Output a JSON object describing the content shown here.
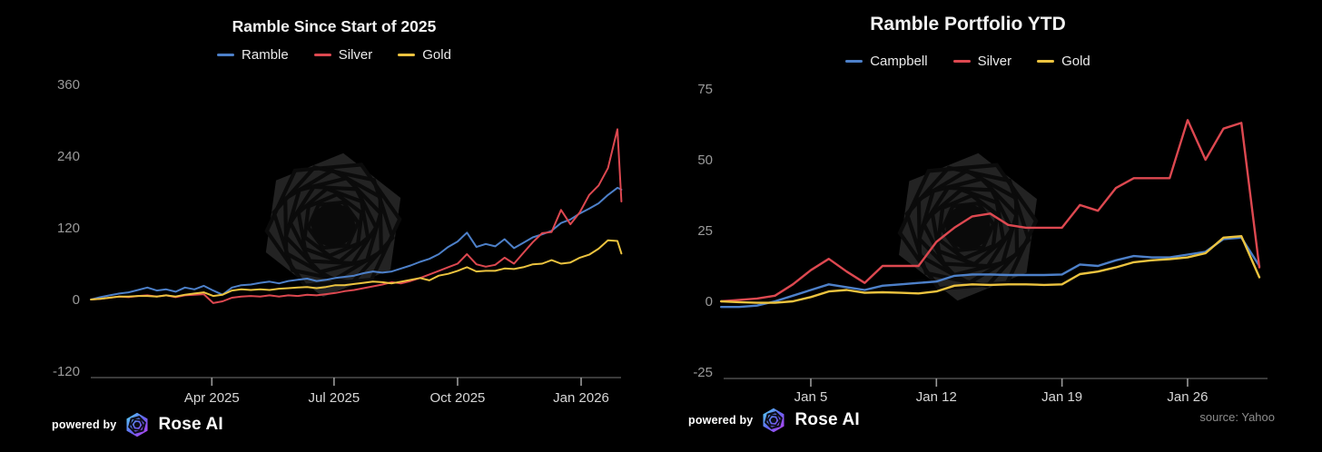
{
  "page": {
    "background": "#000000"
  },
  "branding": {
    "powered_by": "powered by",
    "brand": "Rose AI",
    "source": "source: Yahoo",
    "logo_gradient": [
      "#55dcf5",
      "#6366f1",
      "#c13ef0"
    ]
  },
  "colors": {
    "blue": "#4d80c9",
    "red": "#dd4850",
    "gold": "#ecc33f",
    "axis_line": "#5c5c5c",
    "tick_mark": "#9a9a9a",
    "y_label": "#9a9a9a",
    "x_label": "#d6d6d6",
    "watermark": "#232323"
  },
  "charts": [
    {
      "title": "Ramble Since Start of 2025",
      "chart_data": {
        "type": "line",
        "title": "Ramble Since Start of 2025",
        "xlabel": "",
        "ylabel": "",
        "legend_position": "top",
        "grid": false,
        "y_ticks": [
          360,
          240,
          120,
          0,
          -120
        ],
        "ylim": [
          -130,
          375
        ],
        "x_unit": "days since 2025-01-01",
        "x_tick_days": [
          90,
          181,
          273,
          365
        ],
        "x_tick_labels": [
          "Apr 2025",
          "Jul 2025",
          "Oct 2025",
          "Jan 2026"
        ],
        "x_days": [
          0,
          7,
          14,
          21,
          28,
          35,
          42,
          49,
          56,
          63,
          70,
          77,
          84,
          91,
          98,
          105,
          112,
          119,
          126,
          133,
          140,
          147,
          154,
          161,
          168,
          175,
          182,
          189,
          196,
          203,
          210,
          217,
          224,
          231,
          238,
          245,
          252,
          259,
          266,
          273,
          280,
          287,
          294,
          301,
          308,
          315,
          322,
          329,
          336,
          343,
          350,
          357,
          364,
          371,
          378,
          385,
          392,
          395
        ],
        "series": [
          {
            "name": "Ramble",
            "color": "#4d80c9",
            "values": [
              0,
              4,
              7,
              10,
              12,
              16,
              20,
              15,
              17,
              13,
              20,
              17,
              23,
              15,
              8,
              20,
              24,
              25,
              28,
              30,
              27,
              31,
              33,
              35,
              31,
              33,
              36,
              38,
              40,
              44,
              47,
              45,
              47,
              52,
              57,
              63,
              68,
              76,
              88,
              97,
              112,
              88,
              93,
              89,
              101,
              86,
              95,
              104,
              109,
              115,
              128,
              134,
              144,
              152,
              161,
              175,
              187,
              184
            ]
          },
          {
            "name": "Silver",
            "color": "#dd4850",
            "values": [
              0,
              1,
              3,
              5,
              4,
              6,
              7,
              5,
              7,
              4,
              7,
              8,
              9,
              -6,
              -3,
              3,
              5,
              6,
              5,
              7,
              5,
              7,
              6,
              8,
              7,
              9,
              11,
              14,
              16,
              19,
              22,
              25,
              29,
              27,
              31,
              36,
              42,
              48,
              54,
              60,
              76,
              59,
              55,
              58,
              70,
              60,
              78,
              96,
              111,
              113,
              150,
              126,
              146,
              175,
              191,
              220,
              285,
              164
            ]
          },
          {
            "name": "Gold",
            "color": "#ecc33f",
            "values": [
              0,
              1,
              3,
              5,
              5,
              6,
              6,
              5,
              7,
              5,
              8,
              10,
              12,
              6,
              8,
              15,
              17,
              16,
              17,
              16,
              18,
              19,
              20,
              21,
              19,
              21,
              24,
              24,
              26,
              28,
              30,
              29,
              27,
              30,
              33,
              36,
              32,
              40,
              43,
              48,
              54,
              47,
              48,
              48,
              52,
              51,
              54,
              59,
              60,
              66,
              60,
              62,
              70,
              75,
              85,
              99,
              98,
              77
            ]
          }
        ]
      }
    },
    {
      "title": "Ramble Portfolio YTD",
      "chart_data": {
        "type": "line",
        "title": "Ramble Portfolio YTD",
        "xlabel": "",
        "ylabel": "",
        "legend_position": "top",
        "grid": false,
        "source": "Yahoo",
        "y_ticks": [
          75,
          50,
          25,
          0,
          -25
        ],
        "ylim": [
          -28,
          80
        ],
        "x_unit": "days since 2025-12-31",
        "x_tick_days": [
          5,
          12,
          19,
          26
        ],
        "x_tick_labels": [
          "Jan 5",
          "Jan 12",
          "Jan 19",
          "Jan 26"
        ],
        "x_days": [
          0,
          1,
          2,
          3,
          4,
          5,
          6,
          7,
          8,
          9,
          10,
          11,
          12,
          13,
          14,
          15,
          16,
          17,
          18,
          19,
          20,
          21,
          22,
          23,
          24,
          25,
          26,
          27,
          28,
          29,
          30
        ],
        "series": [
          {
            "name": "Campbell",
            "color": "#4d80c9",
            "values": [
              -2,
              -2,
              -1.5,
              0,
              2,
              4,
              6,
              5,
              4,
              5.5,
              6,
              6.5,
              7,
              9,
              9.5,
              9.5,
              9.3,
              9.3,
              9.3,
              9.5,
              13,
              12.5,
              14.5,
              16,
              15.5,
              15.5,
              16.5,
              17.5,
              22,
              22.5,
              12.5
            ]
          },
          {
            "name": "Silver",
            "color": "#dd4850",
            "values": [
              0,
              0.5,
              1,
              2,
              6,
              11,
              15,
              10.5,
              6.5,
              12.5,
              12.5,
              12.5,
              21,
              26,
              30,
              31,
              27,
              26,
              26,
              26,
              34,
              32,
              40,
              43.5,
              43.5,
              43.5,
              64,
              50,
              61,
              63,
              12
            ]
          },
          {
            "name": "Gold",
            "color": "#ecc33f",
            "values": [
              0,
              -0.3,
              -0.5,
              -0.5,
              0,
              1.5,
              3.5,
              4,
              3,
              3.2,
              3,
              2.8,
              3.5,
              5.5,
              6,
              5.8,
              6,
              6,
              5.8,
              6,
              9.6,
              10.5,
              12,
              13.8,
              14.5,
              14.9,
              15.5,
              17,
              22.5,
              23,
              8.5
            ]
          }
        ]
      }
    }
  ]
}
